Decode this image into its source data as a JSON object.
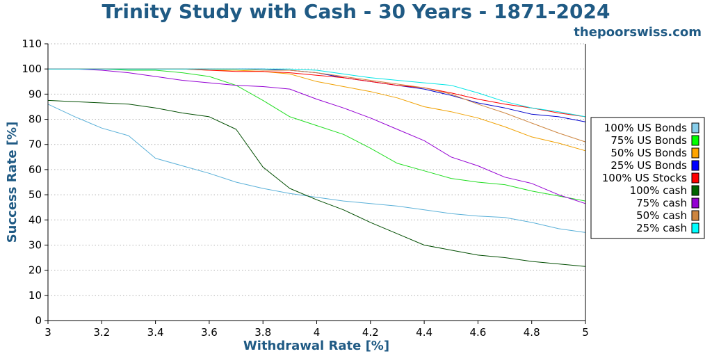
{
  "header": {
    "title": "Trinity Study with Cash - 30 Years - 1871-2024",
    "site": "thepoorswiss.com"
  },
  "chart_data": {
    "type": "line",
    "title": "Trinity Study with Cash - 30 Years - 1871-2024",
    "xlabel": "Withdrawal Rate [%]",
    "ylabel": "Success Rate [%]",
    "xlim": [
      3,
      5
    ],
    "ylim": [
      0,
      110
    ],
    "xticks": [
      3,
      3.2,
      3.4,
      3.6,
      3.8,
      4,
      4.2,
      4.4,
      4.6,
      4.8,
      5
    ],
    "xtick_labels": [
      "3",
      "3.2",
      "3.4",
      "3.6",
      "3.8",
      "4",
      "4.2",
      "4.4",
      "4.6",
      "4.8",
      "5"
    ],
    "yticks": [
      0,
      10,
      20,
      30,
      40,
      50,
      60,
      70,
      80,
      90,
      100,
      110
    ],
    "ytick_labels": [
      "0",
      "10",
      "20",
      "30",
      "40",
      "50",
      "60",
      "70",
      "80",
      "90",
      "100",
      "110"
    ],
    "grid": "horizontal dotted",
    "legend_position": "right",
    "x": [
      3,
      3.1,
      3.2,
      3.3,
      3.4,
      3.5,
      3.6,
      3.7,
      3.8,
      3.9,
      4,
      4.1,
      4.2,
      4.3,
      4.4,
      4.5,
      4.6,
      4.7,
      4.8,
      4.9,
      5
    ],
    "series": [
      {
        "name": "100% US Bonds",
        "color": "#87ceeb",
        "line_color": "#5ab0d8",
        "values": [
          86,
          81,
          76.5,
          73.5,
          64.5,
          61.5,
          58.5,
          55,
          52.5,
          50.5,
          49,
          47.5,
          46.5,
          45.5,
          44,
          42.5,
          41.5,
          41,
          39,
          36.5,
          35
        ]
      },
      {
        "name": "75% US Bonds",
        "color": "#00ff00",
        "line_color": "#22dd22",
        "values": [
          100,
          100,
          100,
          99.5,
          99.5,
          98.5,
          97,
          93.5,
          87.5,
          81,
          77.5,
          74,
          68.5,
          62.5,
          59.5,
          56.5,
          55,
          54,
          51.5,
          49.5,
          47.5
        ]
      },
      {
        "name": "50% US Bonds",
        "color": "#ffa500",
        "line_color": "#f0a000",
        "values": [
          100,
          100,
          100,
          100,
          100,
          100,
          99.5,
          99.5,
          99,
          98,
          95,
          93,
          91,
          88.5,
          85,
          83,
          80.5,
          77,
          73,
          70.5,
          67.5
        ]
      },
      {
        "name": "25% US Bonds",
        "color": "#0000ff",
        "line_color": "#0000cc",
        "values": [
          100,
          100,
          100,
          100,
          100,
          100,
          100,
          100,
          100,
          99.5,
          98.5,
          96.5,
          95,
          93.5,
          92,
          89.5,
          86.5,
          84.5,
          82,
          81,
          79
        ]
      },
      {
        "name": "100% US Stocks",
        "color": "#ff0000",
        "line_color": "#ff0000",
        "values": [
          100,
          100,
          100,
          100,
          100,
          100,
          99.5,
          99,
          99,
          98.5,
          97.5,
          96.5,
          95,
          93.5,
          92.5,
          90.5,
          88,
          86,
          84.5,
          82.5,
          81
        ]
      },
      {
        "name": "100% cash",
        "color": "#006400",
        "line_color": "#004d00",
        "values": [
          87.5,
          87,
          86.5,
          86,
          84.5,
          82.5,
          81,
          76,
          61,
          52.5,
          48,
          44,
          39,
          34.5,
          30,
          28,
          26,
          25,
          23.5,
          22.5,
          21.5
        ]
      },
      {
        "name": "75% cash",
        "color": "#9400d3",
        "line_color": "#9400d3",
        "values": [
          100,
          100,
          99.5,
          98.5,
          97,
          95.5,
          94.5,
          93.5,
          93,
          92,
          88,
          84.5,
          80.5,
          76,
          71.5,
          65,
          61.5,
          57,
          54.5,
          50,
          46.5
        ]
      },
      {
        "name": "50% cash",
        "color": "#cd853f",
        "line_color": "#cd853f",
        "values": [
          100,
          100,
          100,
          100,
          100,
          100,
          100,
          100,
          99.5,
          99.5,
          98.5,
          97,
          95.5,
          94,
          92.5,
          90,
          86,
          82.5,
          78.5,
          74.5,
          71
        ]
      },
      {
        "name": "25% cash",
        "color": "#00ffff",
        "line_color": "#00e5e5",
        "values": [
          100,
          100,
          100,
          100,
          100,
          100,
          100,
          100,
          100,
          100,
          99.5,
          98,
          96.5,
          95.5,
          94.5,
          93.5,
          90.5,
          87,
          84.5,
          83,
          81
        ]
      }
    ]
  }
}
